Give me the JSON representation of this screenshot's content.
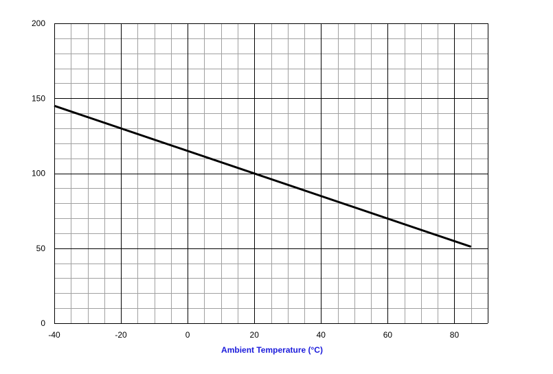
{
  "chart_data": {
    "type": "line",
    "title": "",
    "xlabel": "Ambient Temperature (°C)",
    "ylabel": "",
    "xlim": [
      -40,
      90
    ],
    "ylim": [
      0,
      200
    ],
    "x_ticks": [
      -40,
      -20,
      0,
      20,
      40,
      60,
      80
    ],
    "y_ticks": [
      0,
      50,
      100,
      150,
      200
    ],
    "x_tick_labels": [
      "-40",
      "-20",
      "0",
      "20",
      "40",
      "60",
      "80"
    ],
    "y_tick_labels": [
      "0",
      "50",
      "100",
      "150",
      "200"
    ],
    "minor_x_step": 5,
    "minor_y_step": 10,
    "grid": true,
    "legend": "none",
    "series": [
      {
        "x": [
          -40,
          85
        ],
        "y": [
          145,
          51
        ],
        "color": "#000000"
      }
    ],
    "colors": {
      "major_grid": "#000000",
      "minor_grid": "#a0a0a0",
      "xlabel": "#1a1adb"
    }
  }
}
